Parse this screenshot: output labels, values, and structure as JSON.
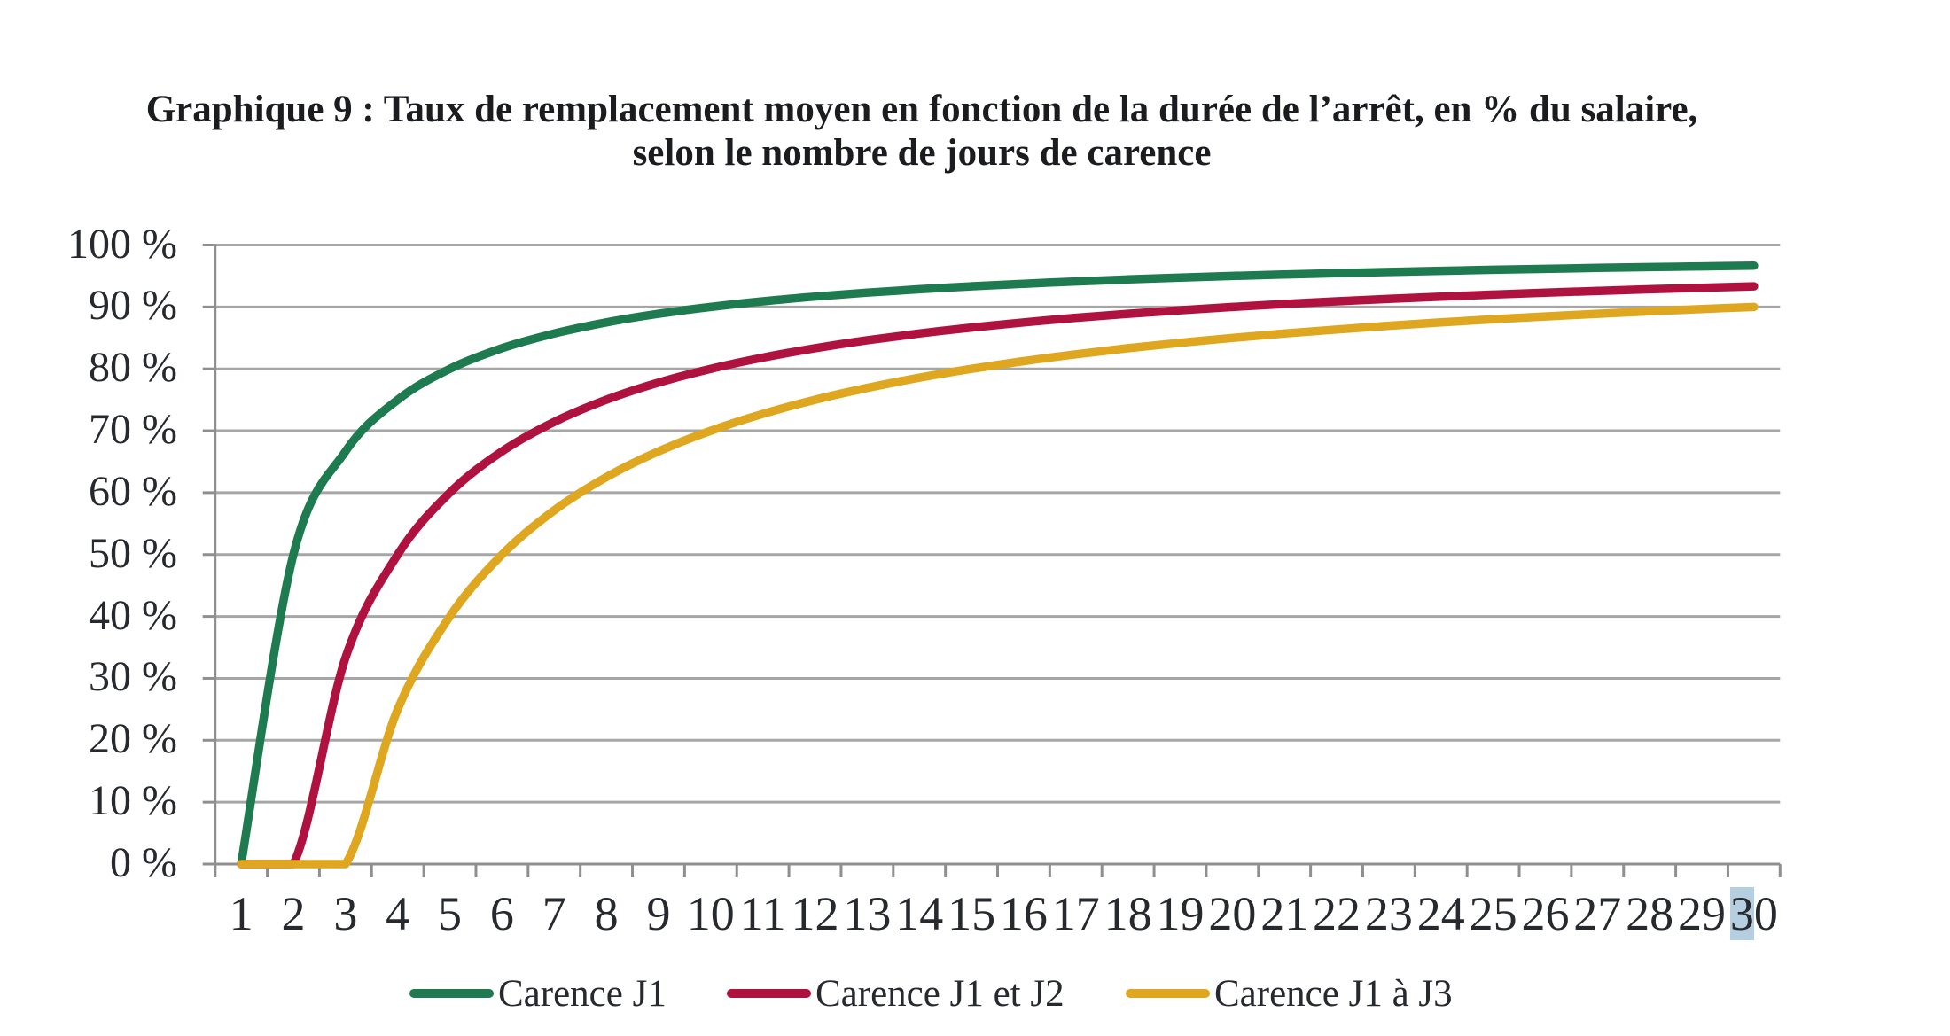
{
  "chart_data": {
    "type": "line",
    "title": "Graphique 9 : Taux de remplacement moyen en fonction de la durée de l’arrêt, en % du salaire, selon le nombre de jours de carence",
    "title_line1": "Graphique 9 : Taux de remplacement moyen en fonction de la durée de l’arrêt, en % du salaire,",
    "title_line2": "selon le nombre de jours de carence",
    "x_axis": {
      "tick_labels": [
        "1",
        "2",
        "3",
        "4",
        "5",
        "6",
        "7",
        "8",
        "9",
        "10",
        "11",
        "12",
        "13",
        "14",
        "15",
        "16",
        "17",
        "18",
        "19",
        "20",
        "21",
        "22",
        "23",
        "24",
        "25",
        "26",
        "27",
        "28",
        "29",
        "30"
      ],
      "highlight": {
        "label": "30",
        "highlighted_text": "3",
        "highlight_color": "#b5cfe0"
      }
    },
    "y_axis": {
      "tick_labels": [
        "0 %",
        "10 %",
        "20 %",
        "30 %",
        "40 %",
        "50 %",
        "60 %",
        "70 %",
        "80 %",
        "90 %",
        "100 %"
      ],
      "min": 0,
      "max": 100,
      "step": 10
    },
    "series": [
      {
        "name": "Carence J1",
        "color": "#1e7b50",
        "values": [
          0,
          50,
          66.67,
          75,
          80,
          83.33,
          85.71,
          87.5,
          88.89,
          90,
          90.91,
          91.67,
          92.31,
          92.86,
          93.33,
          93.75,
          94.12,
          94.44,
          94.74,
          95,
          95.24,
          95.45,
          95.65,
          95.83,
          96,
          96.15,
          96.3,
          96.43,
          96.55,
          96.67
        ]
      },
      {
        "name": "Carence J1 et J2",
        "color": "#b01240",
        "values": [
          0,
          0,
          33.33,
          50,
          60,
          66.67,
          71.43,
          75,
          77.78,
          80,
          81.82,
          83.33,
          84.62,
          85.71,
          86.67,
          87.5,
          88.24,
          88.89,
          89.47,
          90,
          90.48,
          90.91,
          91.3,
          91.67,
          92,
          92.31,
          92.59,
          92.86,
          93.1,
          93.33
        ]
      },
      {
        "name": "Carence J1 à J3",
        "color": "#dfa61f",
        "values": [
          0,
          0,
          0,
          25,
          40,
          50,
          57.14,
          62.5,
          66.67,
          70,
          72.73,
          75,
          76.92,
          78.57,
          80,
          81.25,
          82.35,
          83.33,
          84.21,
          85,
          85.71,
          86.36,
          86.96,
          87.5,
          88,
          88.46,
          88.89,
          89.29,
          89.66,
          90
        ]
      }
    ],
    "legend": {
      "position": "bottom",
      "items": [
        "Carence J1",
        "Carence J1 et J2",
        "Carence J1 à J3"
      ]
    },
    "grid": {
      "horizontal": true,
      "color": "#a6a6a6"
    },
    "axis_color": "#8f8f8f",
    "text_color": "#26292e"
  }
}
